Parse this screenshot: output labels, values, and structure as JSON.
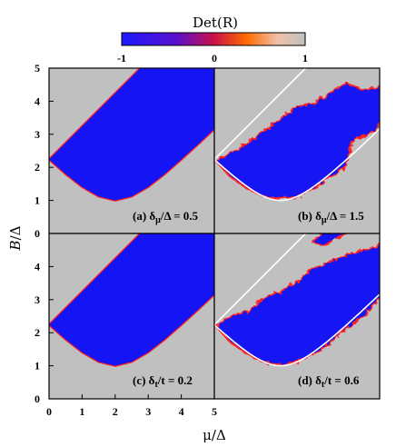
{
  "colorbar": {
    "title": "Det(R)",
    "ticks": [
      "-1",
      "0",
      "1"
    ],
    "colors": [
      "#1a1aff",
      "#8a00aa",
      "#ee1111",
      "#ff8a00",
      "#f2c8b0",
      "#c0c0c0"
    ]
  },
  "colors": {
    "negative": "#1414f5",
    "positive": "#c0c0c0",
    "edge": "#ff2020",
    "boundary": "#ffffff"
  },
  "chart_data": [
    {
      "type": "heatmap",
      "panel": "a",
      "label": {
        "prefix": "(a) δ",
        "sub": "μ",
        "suffix": "/Δ = 0.5"
      },
      "xlim": [
        0,
        5
      ],
      "ylim": [
        0,
        5
      ],
      "guide_curves": false,
      "value_regions": [
        {
          "value": -1,
          "description": "between lower boundary B = sqrt(Δ² + (μ − 2)²) for μ ≥ 0, and upper line B ≈ 2.25 + μ"
        },
        {
          "value": 1,
          "description": "elsewhere"
        }
      ],
      "lower_boundary": [
        [
          0,
          2.24
        ],
        [
          0.5,
          1.8
        ],
        [
          1,
          1.41
        ],
        [
          1.5,
          1.12
        ],
        [
          2,
          1.0
        ],
        [
          2.5,
          1.12
        ],
        [
          3,
          1.41
        ],
        [
          3.5,
          1.8
        ],
        [
          4,
          2.24
        ],
        [
          4.5,
          2.69
        ],
        [
          5,
          3.16
        ]
      ],
      "upper_boundary": [
        [
          0,
          2.24
        ],
        [
          2.76,
          5.0
        ]
      ]
    },
    {
      "type": "heatmap",
      "panel": "b",
      "label": {
        "prefix": "(b) δ",
        "sub": "μ",
        "suffix": "/Δ = 1.5"
      },
      "xlim": [
        0,
        5
      ],
      "ylim": [
        0,
        5
      ],
      "guide_curves": true,
      "value_regions": [
        {
          "value": -1,
          "description": "inside the hyperbola-bounded region, narrowed with noisy edges"
        },
        {
          "value": 1,
          "description": "elsewhere"
        }
      ],
      "lower_boundary": [
        [
          0.1,
          2.2
        ],
        [
          0.5,
          1.75
        ],
        [
          1,
          1.4
        ],
        [
          1.5,
          1.15
        ],
        [
          2,
          1.1
        ],
        [
          2.5,
          1.15
        ],
        [
          3,
          1.4
        ],
        [
          3.5,
          1.75
        ],
        [
          3.9,
          2.0
        ],
        [
          4.2,
          2.9
        ],
        [
          4.8,
          3.1
        ],
        [
          5.0,
          3.4
        ]
      ],
      "upper_boundary": [
        [
          0.1,
          2.2
        ],
        [
          0.7,
          2.5
        ],
        [
          1.3,
          2.9
        ],
        [
          2.0,
          3.4
        ],
        [
          2.5,
          3.8
        ],
        [
          3.0,
          3.9
        ],
        [
          3.5,
          4.2
        ],
        [
          4.0,
          4.5
        ],
        [
          4.5,
          4.3
        ],
        [
          5.0,
          4.4
        ]
      ]
    },
    {
      "type": "heatmap",
      "panel": "c",
      "label": {
        "prefix": "(c) δ",
        "sub": "t",
        "suffix": "/t = 0.2"
      },
      "xlim": [
        0,
        5
      ],
      "ylim": [
        0,
        5
      ],
      "guide_curves": false,
      "value_regions": [
        {
          "value": -1,
          "description": "between lower boundary B = sqrt(Δ² + (μ − 2)²) and upper line B ≈ 2.25 + μ"
        },
        {
          "value": 1,
          "description": "elsewhere"
        }
      ],
      "lower_boundary": [
        [
          0,
          2.24
        ],
        [
          0.5,
          1.8
        ],
        [
          1,
          1.41
        ],
        [
          1.5,
          1.12
        ],
        [
          2,
          1.0
        ],
        [
          2.5,
          1.12
        ],
        [
          3,
          1.41
        ],
        [
          3.5,
          1.8
        ],
        [
          4,
          2.24
        ],
        [
          4.5,
          2.69
        ],
        [
          5,
          3.16
        ]
      ],
      "upper_boundary": [
        [
          0,
          2.24
        ],
        [
          2.76,
          5.0
        ]
      ]
    },
    {
      "type": "heatmap",
      "panel": "d",
      "label": {
        "prefix": "(d) δ",
        "sub": "t",
        "suffix": "/t = 0.6"
      },
      "xlim": [
        0,
        5
      ],
      "ylim": [
        0,
        5
      ],
      "guide_curves": true,
      "value_regions": [
        {
          "value": -1,
          "description": "inside the hyperbola-bounded region with jagged upper edge and an extra patch near μ ≈ 3.5, B ≈ 4.8"
        },
        {
          "value": 1,
          "description": "elsewhere"
        }
      ],
      "lower_boundary": [
        [
          0.1,
          2.2
        ],
        [
          0.5,
          1.75
        ],
        [
          1,
          1.4
        ],
        [
          1.5,
          1.15
        ],
        [
          2,
          1.05
        ],
        [
          2.5,
          1.15
        ],
        [
          3,
          1.4
        ],
        [
          3.5,
          1.75
        ],
        [
          4,
          2.2
        ],
        [
          4.5,
          2.55
        ],
        [
          5.0,
          3.1
        ]
      ],
      "upper_boundary": [
        [
          0.1,
          2.2
        ],
        [
          0.5,
          2.45
        ],
        [
          1.0,
          2.6
        ],
        [
          1.5,
          3.0
        ],
        [
          2.0,
          3.2
        ],
        [
          2.5,
          3.5
        ],
        [
          3.0,
          3.9
        ],
        [
          3.5,
          4.1
        ],
        [
          4.0,
          4.3
        ],
        [
          4.5,
          4.45
        ],
        [
          5.0,
          4.6
        ]
      ]
    }
  ],
  "axes": {
    "xlabel": "μ/Δ",
    "ylabel_main": "B",
    "ylabel_suffix": "/Δ",
    "x_ticks": [
      "0",
      "1",
      "2",
      "3",
      "4",
      "5"
    ],
    "y_ticks_top": [
      "0",
      "1",
      "2",
      "3",
      "4",
      "5"
    ],
    "y_ticks_bottom": [
      "0",
      "1",
      "2",
      "3",
      "4"
    ]
  }
}
